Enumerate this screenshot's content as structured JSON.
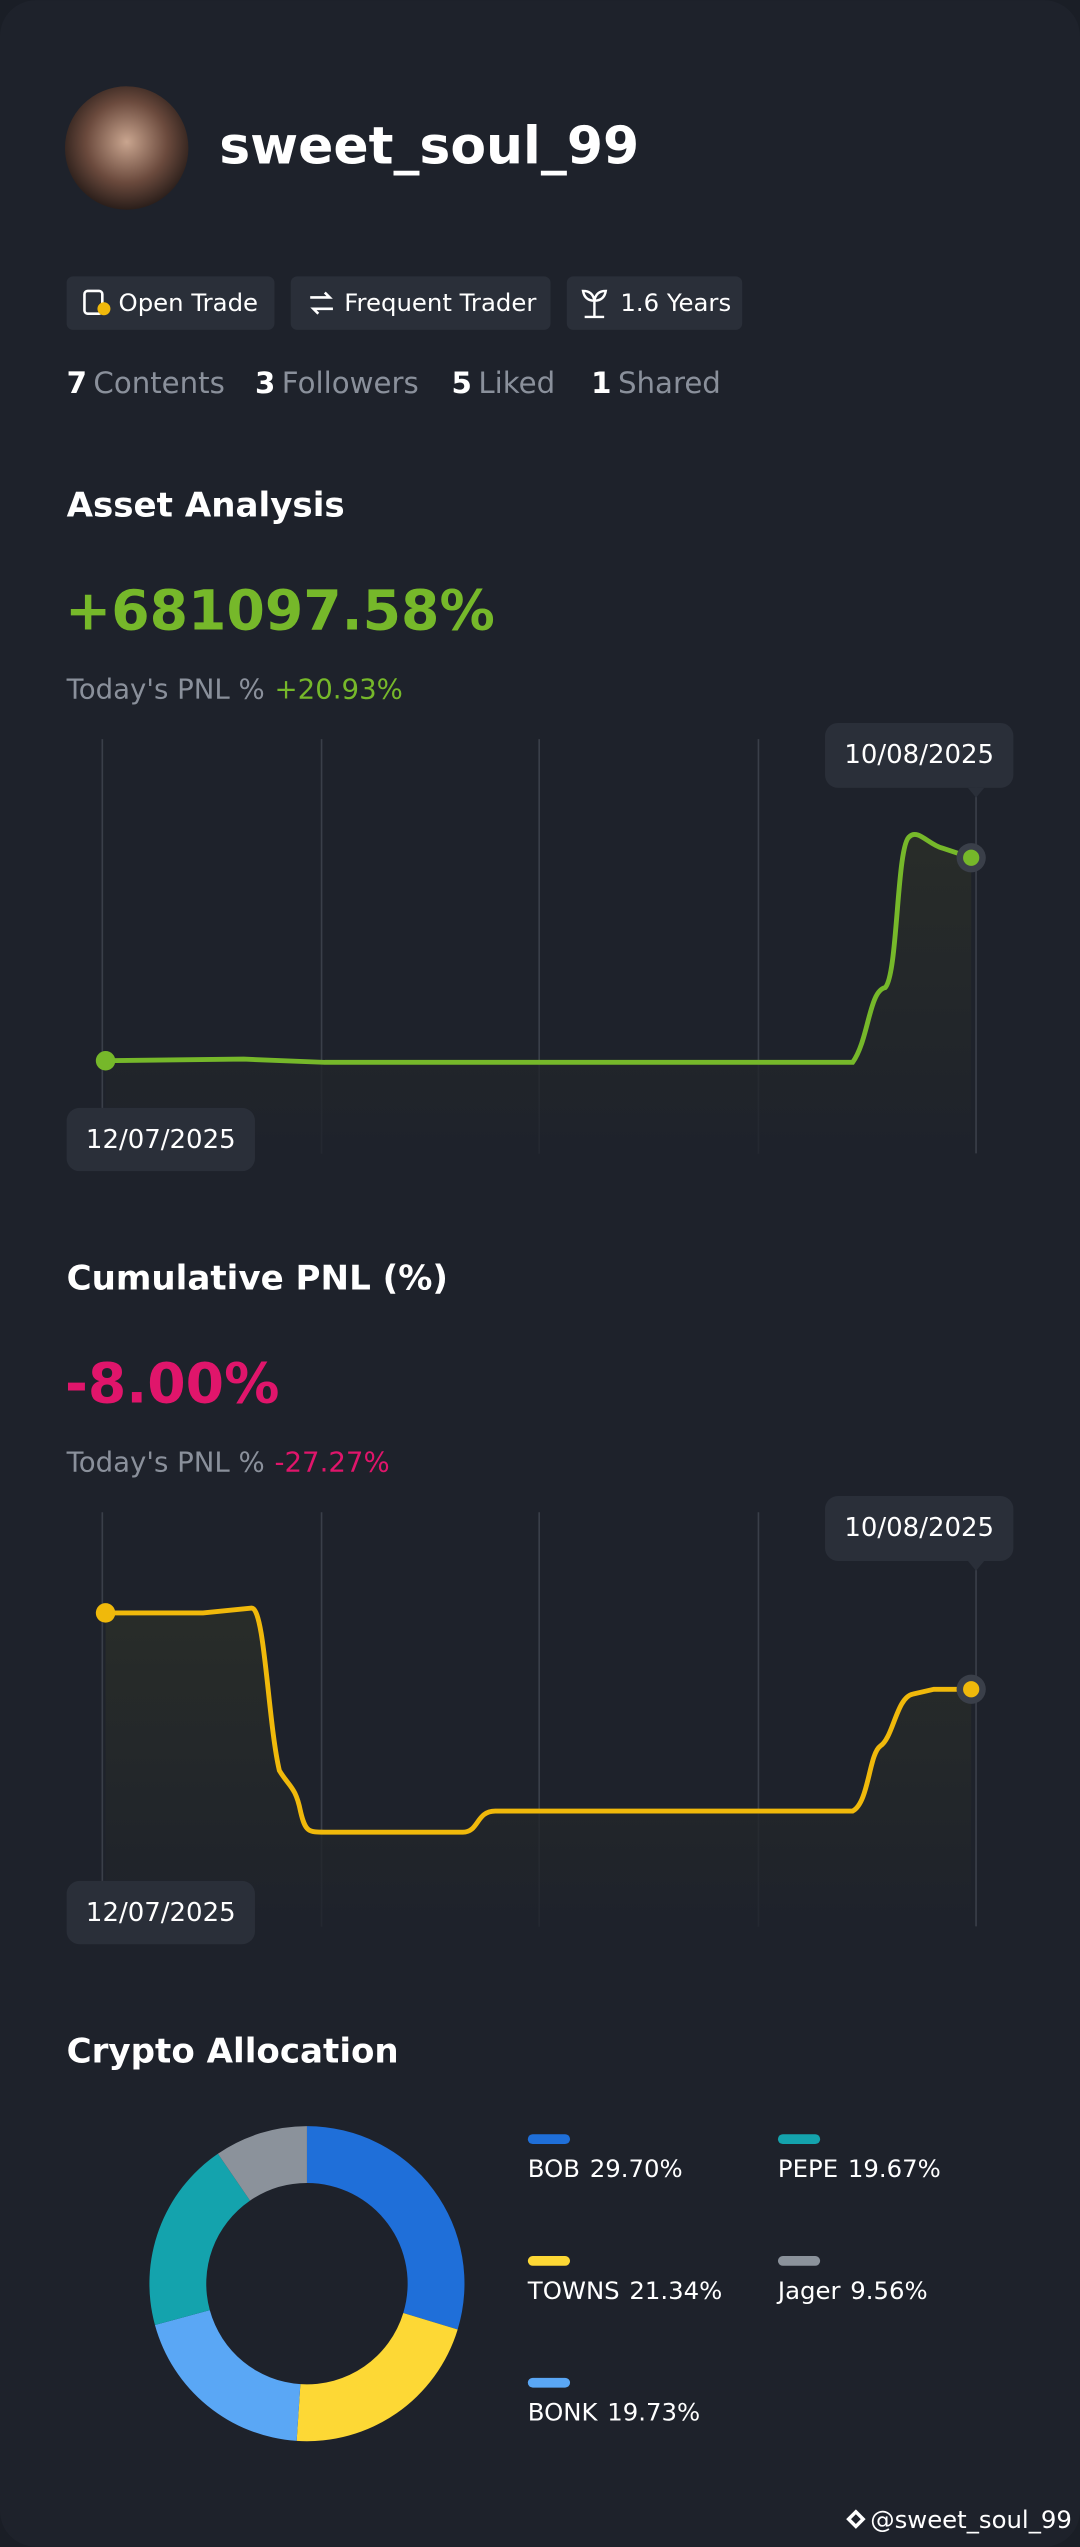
{
  "profile": {
    "username": "sweet_soul_99",
    "badges": [
      "Open Trade",
      "Frequent Trader",
      "1.6 Years"
    ],
    "stats": [
      {
        "count": 7,
        "label": "Contents"
      },
      {
        "count": 3,
        "label": "Followers"
      },
      {
        "count": 5,
        "label": "Liked"
      },
      {
        "count": 1,
        "label": "Shared"
      }
    ]
  },
  "asset_analysis": {
    "title": "Asset Analysis",
    "value": "+681097.58%",
    "today_label": "Today's PNL %",
    "today_value": "+20.93%",
    "start_date": "12/07/2025",
    "end_date": "10/08/2025"
  },
  "cumulative_pnl": {
    "title": "Cumulative PNL (%)",
    "value": "-8.00%",
    "today_label": "Today's PNL %",
    "today_value": "-27.27%",
    "start_date": "12/07/2025",
    "end_date": "10/08/2025"
  },
  "chart_data": {
    "type": "pie",
    "title": "Crypto Allocation",
    "donut": true,
    "categories": [
      "BOB",
      "TOWNS",
      "BONK",
      "PEPE",
      "Jager"
    ],
    "values": [
      29.7,
      21.34,
      19.73,
      19.67,
      9.56
    ],
    "value_labels": [
      "29.70%",
      "21.34%",
      "19.73%",
      "19.67%",
      "9.56%"
    ],
    "colors": [
      "#1f6fd9",
      "#fdd835",
      "#5aa7f5",
      "#14a3ad",
      "#8b929b"
    ]
  },
  "watermark": "@sweet_soul_99"
}
